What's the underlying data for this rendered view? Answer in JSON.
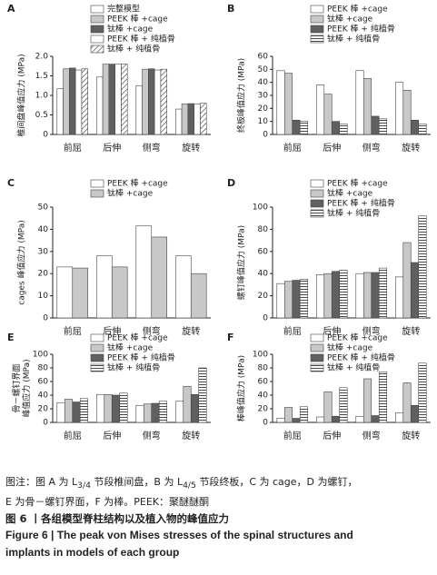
{
  "chart_data": [
    {
      "type": "bar",
      "label": "A",
      "y_label": [
        "椎间盘峰值应力 (MPa)"
      ],
      "categories": [
        "前屈",
        "后伸",
        "侧弯",
        "旋转"
      ],
      "ylim": [
        0,
        2.0
      ],
      "yticks": [
        0,
        0.5,
        {
          "value": 1,
          "label": "1.0"
        },
        1.5,
        {
          "value": 2,
          "label": "2.0"
        }
      ],
      "series": [
        {
          "name": "完整模型",
          "color": "#ffffff",
          "values": [
            1.17,
            1.47,
            1.25,
            0.65
          ]
        },
        {
          "name": "PEEK 棒 +cage",
          "color": "#c8c8c8",
          "values": [
            1.68,
            1.8,
            1.67,
            0.78
          ]
        },
        {
          "name": "钛棒 +cage",
          "color": "#606060",
          "values": [
            1.7,
            1.8,
            1.68,
            0.79
          ]
        },
        {
          "name": "PEEK 棒 + 纯植骨",
          "color": "#ffffff",
          "values": [
            1.65,
            1.8,
            1.65,
            0.78
          ]
        },
        {
          "name": "钛棒 + 纯植骨",
          "color": "#ffffff",
          "pattern": "diagonal",
          "values": [
            1.68,
            1.8,
            1.67,
            0.8
          ]
        }
      ]
    },
    {
      "type": "bar",
      "label": "B",
      "y_label": [
        "终板峰值应力 (MPa)"
      ],
      "categories": [
        "前屈",
        "后伸",
        "侧弯",
        "旋转"
      ],
      "ylim": [
        0,
        60
      ],
      "yticks": [
        0,
        10,
        20,
        30,
        40,
        50,
        60
      ],
      "series": [
        {
          "name": "PEEK 棒 +cage",
          "color": "#ffffff",
          "values": [
            49,
            38,
            49,
            40
          ]
        },
        {
          "name": "钛棒 +cage",
          "color": "#c8c8c8",
          "values": [
            47,
            31,
            43,
            34
          ]
        },
        {
          "name": "PEEK 棒 + 纯植骨",
          "color": "#606060",
          "values": [
            11,
            10,
            14,
            11
          ]
        },
        {
          "name": "钛棒 + 纯植骨",
          "color": "#ffffff",
          "pattern": "horizontal",
          "values": [
            10,
            8,
            12,
            8
          ]
        }
      ]
    },
    {
      "type": "bar",
      "label": "C",
      "y_label": [
        "cages 峰值应力 (MPa)"
      ],
      "categories": [
        "前屈",
        "后伸",
        "侧弯",
        "旋转"
      ],
      "ylim": [
        0,
        50
      ],
      "yticks": [
        0,
        10,
        20,
        30,
        40,
        50
      ],
      "series": [
        {
          "name": "PEEK 棒 +cage",
          "color": "#ffffff",
          "values": [
            23,
            28,
            41.5,
            28
          ]
        },
        {
          "name": "钛棒 +cage",
          "color": "#c8c8c8",
          "values": [
            22.5,
            23,
            36.5,
            20
          ]
        }
      ]
    },
    {
      "type": "bar",
      "label": "D",
      "y_label": [
        "螺钉峰值应力 (MPa)"
      ],
      "categories": [
        "前屈",
        "后伸",
        "侧弯",
        "旋转"
      ],
      "ylim": [
        0,
        100
      ],
      "yticks": [
        0,
        20,
        40,
        60,
        80,
        100
      ],
      "series": [
        {
          "name": "PEEK 棒 +cage",
          "color": "#ffffff",
          "values": [
            31,
            39,
            40,
            37
          ]
        },
        {
          "name": "钛棒 +cage",
          "color": "#c8c8c8",
          "values": [
            33,
            40,
            41,
            68
          ]
        },
        {
          "name": "PEEK 棒 + 纯植骨",
          "color": "#606060",
          "values": [
            34,
            42,
            41,
            50
          ]
        },
        {
          "name": "钛棒 + 纯植骨",
          "color": "#ffffff",
          "pattern": "horizontal",
          "values": [
            35,
            43,
            45,
            92
          ]
        }
      ]
    },
    {
      "type": "bar",
      "label": "E",
      "y_label": [
        "骨－螺钉界面",
        "峰值应力 (MPa)"
      ],
      "categories": [
        "前屈",
        "后伸",
        "侧弯",
        "旋转"
      ],
      "ylim": [
        0,
        100
      ],
      "yticks": [
        0,
        20,
        40,
        60,
        80,
        100
      ],
      "series": [
        {
          "name": "PEEK 棒 +cage",
          "color": "#ffffff",
          "values": [
            29,
            41,
            25,
            31
          ]
        },
        {
          "name": "钛棒 +cage",
          "color": "#c8c8c8",
          "values": [
            34,
            41,
            27,
            53
          ]
        },
        {
          "name": "PEEK 棒 + 纯植骨",
          "color": "#606060",
          "values": [
            30,
            40,
            28,
            41
          ]
        },
        {
          "name": "钛棒 + 纯植骨",
          "color": "#ffffff",
          "pattern": "horizontal",
          "values": [
            35,
            43,
            31,
            80
          ]
        }
      ]
    },
    {
      "type": "bar",
      "label": "F",
      "y_label": [
        "棒峰值应力 (MPa)"
      ],
      "categories": [
        "前屈",
        "后伸",
        "侧弯",
        "旋转"
      ],
      "ylim": [
        0,
        100
      ],
      "yticks": [
        0,
        20,
        40,
        60,
        80,
        100
      ],
      "series": [
        {
          "name": "PEEK 棒 +cage",
          "color": "#ffffff",
          "values": [
            6,
            8,
            9,
            14
          ]
        },
        {
          "name": "钛棒 +cage",
          "color": "#c8c8c8",
          "values": [
            22,
            45,
            64,
            58
          ]
        },
        {
          "name": "PEEK 棒 + 纯植骨",
          "color": "#606060",
          "values": [
            6,
            9,
            10,
            25
          ]
        },
        {
          "name": "钛棒 + 纯植骨",
          "color": "#ffffff",
          "pattern": "horizontal",
          "values": [
            23,
            51,
            74,
            87
          ]
        }
      ]
    }
  ],
  "caption": {
    "note": [
      "图注：图 A 为 L",
      "3/4",
      " 节段椎间盘，B 为 L",
      "4/5",
      " 节段终板，C 为 cage，D 为螺钉，",
      "E 为骨－螺钉界面，F 为棒。PEEK：聚醚醚酮"
    ],
    "title_cn": "图 6 丨各组模型脊柱结构以及植入物的峰值应力",
    "title_en": [
      "Figure 6 | The peak von Mises stresses of the spinal structures and",
      "implants in models of each group"
    ]
  }
}
